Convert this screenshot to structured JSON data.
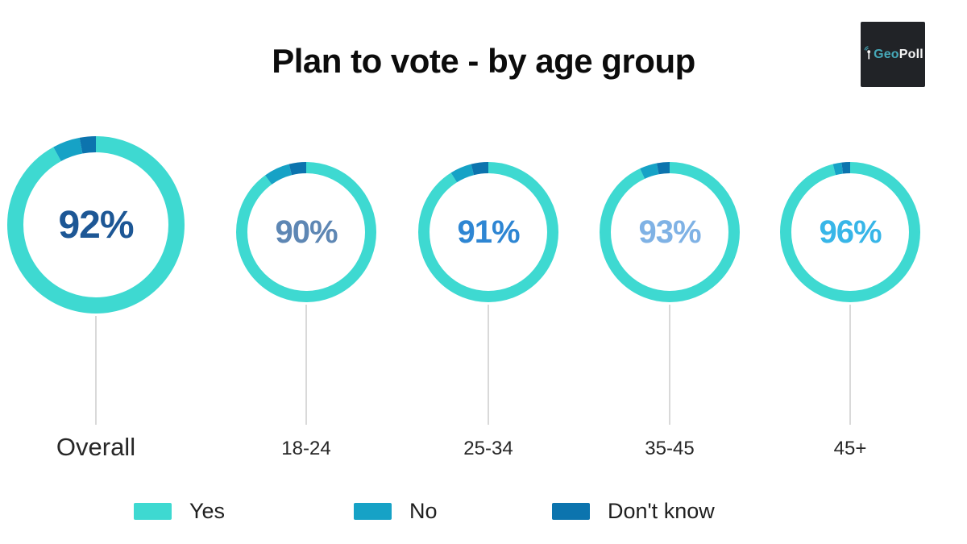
{
  "title": "Plan to vote - by age group",
  "logo": {
    "geo": "Geo",
    "poll": "Poll"
  },
  "legend": [
    {
      "label": "Yes",
      "color": "#3ED9D1"
    },
    {
      "label": "No",
      "color": "#16A2C6"
    },
    {
      "label": "Don't know",
      "color": "#0C74AE"
    }
  ],
  "chart_data": {
    "type": "pie",
    "variant": "donut-small-multiples",
    "title": "Plan to vote - by age group",
    "categories": [
      "Overall",
      "18-24",
      "25-34",
      "35-45",
      "45+"
    ],
    "series": [
      {
        "name": "Yes",
        "color": "#3ED9D1",
        "values": [
          92,
          90,
          91,
          93,
          96
        ]
      },
      {
        "name": "No",
        "color": "#16A2C6",
        "values": [
          5,
          6,
          5,
          4,
          2
        ],
        "note": "not labeled; estimated from arc length"
      },
      {
        "name": "Don't know",
        "color": "#0C74AE",
        "values": [
          3,
          4,
          4,
          3,
          2
        ],
        "note": "not labeled; estimated from arc length"
      }
    ],
    "displayed_labels": [
      "92%",
      "90%",
      "91%",
      "93%",
      "96%"
    ],
    "label_colors": [
      "#1D5795",
      "#5E87B4",
      "#2E86D3",
      "#7FB2E5",
      "#38B6E8"
    ],
    "legend_position": "bottom",
    "start_angle_deg": 0,
    "direction": "clockwise"
  }
}
